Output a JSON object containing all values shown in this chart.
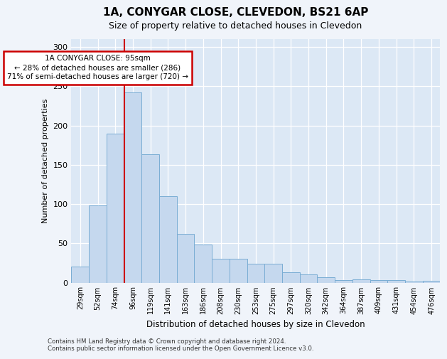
{
  "title1": "1A, CONYGAR CLOSE, CLEVEDON, BS21 6AP",
  "title2": "Size of property relative to detached houses in Clevedon",
  "xlabel": "Distribution of detached houses by size in Clevedon",
  "ylabel": "Number of detached properties",
  "categories": [
    "29sqm",
    "52sqm",
    "74sqm",
    "96sqm",
    "119sqm",
    "141sqm",
    "163sqm",
    "186sqm",
    "208sqm",
    "230sqm",
    "253sqm",
    "275sqm",
    "297sqm",
    "320sqm",
    "342sqm",
    "364sqm",
    "387sqm",
    "409sqm",
    "431sqm",
    "454sqm",
    "476sqm"
  ],
  "values": [
    20,
    98,
    190,
    242,
    163,
    110,
    62,
    48,
    30,
    30,
    24,
    24,
    13,
    10,
    7,
    3,
    4,
    3,
    3,
    1,
    2
  ],
  "bar_color": "#c5d8ee",
  "bar_edge_color": "#7aadd4",
  "highlight_line_color": "#cc0000",
  "annotation_text": "1A CONYGAR CLOSE: 95sqm\n← 28% of detached houses are smaller (286)\n71% of semi-detached houses are larger (720) →",
  "annotation_box_color": "#cc0000",
  "annotation_fill": "white",
  "ylim": [
    0,
    310
  ],
  "yticks": [
    0,
    50,
    100,
    150,
    200,
    250,
    300
  ],
  "footer": "Contains HM Land Registry data © Crown copyright and database right 2024.\nContains public sector information licensed under the Open Government Licence v3.0.",
  "bg_color": "#f0f4fa",
  "plot_bg_color": "#dce8f5"
}
